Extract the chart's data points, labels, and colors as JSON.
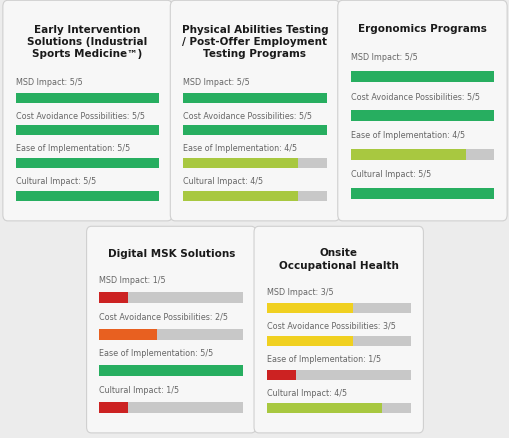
{
  "cards": [
    {
      "title": "Early Intervention\nSolutions (Industrial\nSports Medicine™)",
      "col": 0,
      "row": 0,
      "metrics": [
        {
          "label": "MSD Impact: 5/5",
          "value": 5,
          "max": 5,
          "color": "#27ae60"
        },
        {
          "label": "Cost Avoidance Possibilities: 5/5",
          "value": 5,
          "max": 5,
          "color": "#27ae60"
        },
        {
          "label": "Ease of Implementation: 5/5",
          "value": 5,
          "max": 5,
          "color": "#27ae60"
        },
        {
          "label": "Cultural Impact: 5/5",
          "value": 5,
          "max": 5,
          "color": "#27ae60"
        }
      ]
    },
    {
      "title": "Physical Abilities Testing\n/ Post-Offer Employment\nTesting Programs",
      "col": 1,
      "row": 0,
      "metrics": [
        {
          "label": "MSD Impact: 5/5",
          "value": 5,
          "max": 5,
          "color": "#27ae60"
        },
        {
          "label": "Cost Avoidance Possibilities: 5/5",
          "value": 5,
          "max": 5,
          "color": "#27ae60"
        },
        {
          "label": "Ease of Implementation: 4/5",
          "value": 4,
          "max": 5,
          "color": "#a8c840"
        },
        {
          "label": "Cultural Impact: 4/5",
          "value": 4,
          "max": 5,
          "color": "#a8c840"
        }
      ]
    },
    {
      "title": "Ergonomics Programs",
      "col": 2,
      "row": 0,
      "metrics": [
        {
          "label": "MSD Impact: 5/5",
          "value": 5,
          "max": 5,
          "color": "#27ae60"
        },
        {
          "label": "Cost Avoidance Possibilities: 5/5",
          "value": 5,
          "max": 5,
          "color": "#27ae60"
        },
        {
          "label": "Ease of Implementation: 4/5",
          "value": 4,
          "max": 5,
          "color": "#a8c840"
        },
        {
          "label": "Cultural Impact: 5/5",
          "value": 5,
          "max": 5,
          "color": "#27ae60"
        }
      ]
    },
    {
      "title": "Digital MSK Solutions",
      "col": 0,
      "row": 1,
      "metrics": [
        {
          "label": "MSD Impact: 1/5",
          "value": 1,
          "max": 5,
          "color": "#cc2222"
        },
        {
          "label": "Cost Avoidance Possibilities: 2/5",
          "value": 2,
          "max": 5,
          "color": "#e86020"
        },
        {
          "label": "Ease of Implementation: 5/5",
          "value": 5,
          "max": 5,
          "color": "#27ae60"
        },
        {
          "label": "Cultural Impact: 1/5",
          "value": 1,
          "max": 5,
          "color": "#cc2222"
        }
      ]
    },
    {
      "title": "Onsite\nOccupational Health",
      "col": 1,
      "row": 1,
      "metrics": [
        {
          "label": "MSD Impact: 3/5",
          "value": 3,
          "max": 5,
          "color": "#f0d020"
        },
        {
          "label": "Cost Avoidance Possibilities: 3/5",
          "value": 3,
          "max": 5,
          "color": "#f0d020"
        },
        {
          "label": "Ease of Implementation: 1/5",
          "value": 1,
          "max": 5,
          "color": "#cc2222"
        },
        {
          "label": "Cultural Impact: 4/5",
          "value": 4,
          "max": 5,
          "color": "#a8c840"
        }
      ]
    }
  ],
  "bg_color": "#ececec",
  "card_color": "#f7f7f7",
  "bar_bg_color": "#c8c8c8",
  "label_color": "#666666",
  "label_fontsize": 5.8,
  "title_fontsize": 7.5
}
